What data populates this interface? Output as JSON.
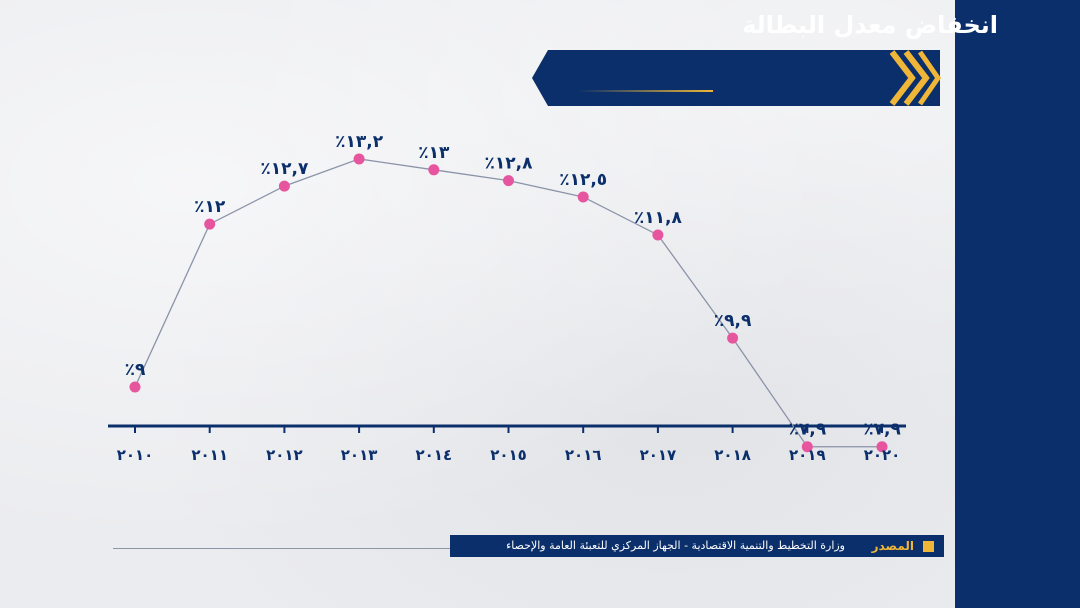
{
  "title": "انخفاض معدل البطالة",
  "source": {
    "label": "المصدر",
    "text": "وزارة التخطيط والتنمية الاقتصادية - الجهاز المركزي للتعبئة العامة والإحصاء"
  },
  "colors": {
    "navy": "#0b2f6b",
    "gold": "#f0b637",
    "point": "#e8559f",
    "line": "#8a93a8"
  },
  "chart_data": {
    "type": "line",
    "categories": [
      "٢٠١٠",
      "٢٠١١",
      "٢٠١٢",
      "٢٠١٣",
      "٢٠١٤",
      "٢٠١٥",
      "٢٠١٦",
      "٢٠١٧",
      "٢٠١٨",
      "٢٠١٩",
      "٢٠٢٠"
    ],
    "values": [
      9,
      12,
      12.7,
      13.2,
      13,
      12.8,
      12.5,
      11.8,
      9.9,
      7.9,
      7.9
    ],
    "data_labels": [
      "٪٩",
      "٪١٢",
      "٪١٢,٧",
      "٪١٣,٢",
      "٪١٣",
      "٪١٢,٨",
      "٪١٢,٥",
      "٪١١,٨",
      "٪٩,٩",
      "٪٧,٩",
      "٪٧,٩"
    ],
    "title": "انخفاض معدل البطالة",
    "xlabel": "",
    "ylabel": "",
    "ylim": [
      6,
      14
    ],
    "grid": false,
    "legend": "none"
  }
}
